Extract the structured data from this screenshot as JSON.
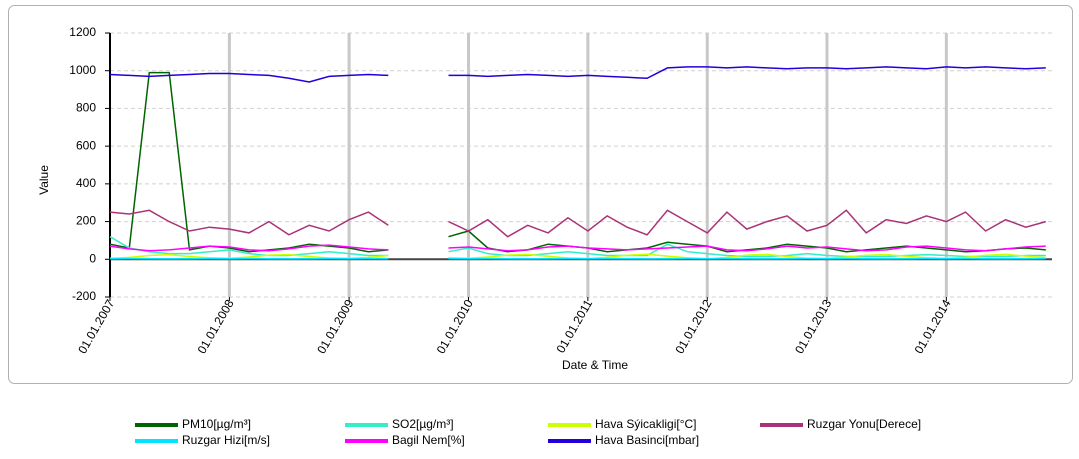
{
  "chart_data": {
    "type": "line",
    "xlabel": "Date & Time",
    "ylabel": "Value",
    "x": [
      "2007-01-01",
      "2007-03-01",
      "2007-05-01",
      "2007-07-01",
      "2007-09-01",
      "2007-11-01",
      "2008-01-01",
      "2008-03-01",
      "2008-05-01",
      "2008-07-01",
      "2008-09-01",
      "2008-11-01",
      "2009-01-01",
      "2009-03-01",
      "2009-05-01",
      "2009-07-01",
      "2009-09-01",
      "2009-11-01",
      "2010-01-01",
      "2010-03-01",
      "2010-05-01",
      "2010-07-01",
      "2010-09-01",
      "2010-11-01",
      "2011-01-01",
      "2011-03-01",
      "2011-05-01",
      "2011-07-01",
      "2011-09-01",
      "2011-11-01",
      "2012-01-01",
      "2012-03-01",
      "2012-05-01",
      "2012-07-01",
      "2012-09-01",
      "2012-11-01",
      "2013-01-01",
      "2013-03-01",
      "2013-05-01",
      "2013-07-01",
      "2013-09-01",
      "2013-11-01",
      "2014-01-01",
      "2014-03-01",
      "2014-05-01",
      "2014-07-01",
      "2014-09-01",
      "2014-11-01"
    ],
    "xlim": [
      "2007-01-01",
      "2014-11-20"
    ],
    "xticks": [
      {
        "value": "2007-01-01",
        "label": "01.01.2007"
      },
      {
        "value": "2008-01-01",
        "label": "01.01.2008"
      },
      {
        "value": "2009-01-01",
        "label": "01.01.2009"
      },
      {
        "value": "2010-01-01",
        "label": "01.01.2010"
      },
      {
        "value": "2011-01-01",
        "label": "01.01.2011"
      },
      {
        "value": "2012-01-01",
        "label": "01.01.2012"
      },
      {
        "value": "2013-01-01",
        "label": "01.01.2013"
      },
      {
        "value": "2014-01-01",
        "label": "01.01.2014"
      }
    ],
    "ylim": [
      -200,
      1200
    ],
    "yticks": [
      -200,
      0,
      200,
      400,
      600,
      800,
      1000,
      1200
    ],
    "grid": true,
    "series": [
      {
        "name": "PM10[µg/m³]",
        "color": "#006400",
        "values": [
          80,
          60,
          990,
          990,
          50,
          70,
          60,
          40,
          50,
          60,
          80,
          70,
          60,
          40,
          50,
          null,
          null,
          120,
          150,
          60,
          40,
          50,
          80,
          70,
          60,
          40,
          50,
          60,
          90,
          80,
          70,
          40,
          50,
          60,
          80,
          70,
          60,
          40,
          50,
          60,
          70,
          60,
          50,
          40,
          45,
          55,
          60,
          50
        ]
      },
      {
        "name": "SO2[µg/m³]",
        "color": "#33eec8",
        "values": [
          120,
          60,
          40,
          30,
          30,
          40,
          50,
          30,
          20,
          20,
          30,
          40,
          30,
          20,
          20,
          null,
          null,
          40,
          60,
          30,
          20,
          20,
          30,
          40,
          30,
          20,
          20,
          20,
          80,
          40,
          30,
          20,
          15,
          15,
          20,
          30,
          20,
          15,
          15,
          15,
          20,
          25,
          20,
          15,
          15,
          15,
          20,
          20
        ]
      },
      {
        "name": "Hava Sýicakligi[°C]",
        "color": "#ccff00",
        "values": [
          5,
          10,
          20,
          25,
          15,
          8,
          5,
          12,
          22,
          25,
          15,
          7,
          5,
          10,
          20,
          null,
          null,
          8,
          5,
          12,
          22,
          26,
          16,
          7,
          4,
          11,
          21,
          27,
          17,
          8,
          3,
          10,
          22,
          26,
          15,
          6,
          5,
          12,
          21,
          25,
          16,
          8,
          6,
          11,
          21,
          26,
          17,
          9
        ]
      },
      {
        "name": "Ruzgar Yonu[Derece]",
        "color": "#aa3377",
        "values": [
          250,
          240,
          260,
          200,
          150,
          170,
          160,
          140,
          200,
          130,
          180,
          150,
          210,
          250,
          180,
          null,
          null,
          200,
          150,
          210,
          120,
          180,
          140,
          220,
          150,
          230,
          170,
          130,
          260,
          200,
          140,
          250,
          160,
          200,
          230,
          150,
          180,
          260,
          140,
          210,
          190,
          230,
          200,
          250,
          150,
          210,
          170,
          200
        ]
      },
      {
        "name": "Ruzgar Hizi[m/s]",
        "color": "#00e5ff",
        "values": [
          3,
          4,
          3,
          2,
          3,
          4,
          3,
          4,
          3,
          2,
          3,
          4,
          3,
          4,
          3,
          null,
          null,
          4,
          3,
          4,
          3,
          2,
          3,
          4,
          3,
          4,
          3,
          2,
          3,
          4,
          3,
          4,
          3,
          2,
          3,
          4,
          3,
          4,
          3,
          2,
          3,
          4,
          3,
          4,
          3,
          2,
          3,
          4
        ]
      },
      {
        "name": "Bagil Nem[%]",
        "color": "#ff00ff",
        "values": [
          70,
          55,
          45,
          50,
          60,
          70,
          65,
          50,
          45,
          55,
          70,
          75,
          65,
          55,
          50,
          null,
          null,
          60,
          65,
          55,
          45,
          50,
          65,
          70,
          60,
          55,
          50,
          55,
          60,
          65,
          70,
          50,
          45,
          55,
          70,
          60,
          65,
          55,
          45,
          50,
          65,
          70,
          60,
          50,
          45,
          55,
          65,
          70
        ]
      },
      {
        "name": "Hava Basinci[mbar]",
        "color": "#2200dd",
        "values": [
          980,
          975,
          970,
          975,
          980,
          985,
          985,
          980,
          975,
          960,
          940,
          970,
          975,
          980,
          975,
          null,
          null,
          975,
          975,
          970,
          975,
          980,
          975,
          970,
          975,
          970,
          965,
          960,
          1015,
          1020,
          1020,
          1015,
          1020,
          1015,
          1010,
          1015,
          1015,
          1010,
          1015,
          1020,
          1015,
          1010,
          1020,
          1015,
          1020,
          1015,
          1010,
          1015
        ]
      }
    ]
  }
}
